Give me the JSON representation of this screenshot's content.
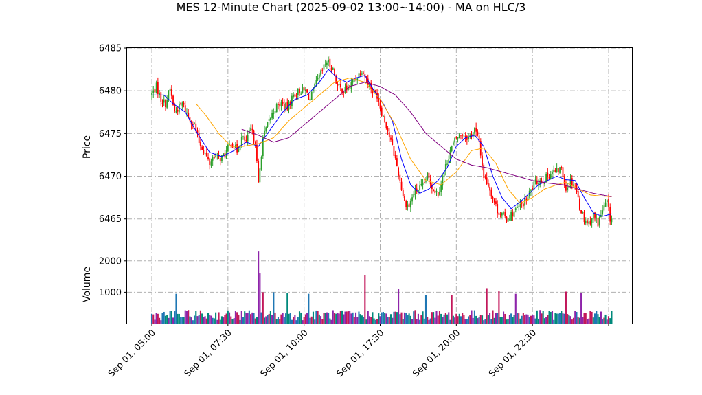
{
  "chart_data": {
    "type": "candlestick",
    "title": "MES 12-Minute Chart (2025-09-02 13:00~14:00) - MA on HLC/3",
    "price_panel": {
      "ylabel": "Price",
      "ylim": [
        6462.0,
        6485.0
      ],
      "yticks": [
        6465,
        6470,
        6475,
        6480,
        6485
      ],
      "ytick_labels": [
        "6465",
        "6470",
        "6475",
        "6480",
        "6485"
      ],
      "grid": true,
      "colors": {
        "up": "#2ca02c",
        "down": "#ff0000",
        "ma_fast": "#0000ff",
        "ma_mid": "#ffa500",
        "ma_slow": "#800080"
      },
      "close_series": [
        [
          0,
          6479.6
        ],
        [
          3,
          6480.5
        ],
        [
          6,
          6479.0
        ],
        [
          9,
          6478.5
        ],
        [
          12,
          6480.2
        ],
        [
          15,
          6477.5
        ],
        [
          20,
          6478.5
        ],
        [
          24,
          6477.0
        ],
        [
          28,
          6476.0
        ],
        [
          31,
          6474.0
        ],
        [
          34,
          6473.0
        ],
        [
          38,
          6471.5
        ],
        [
          41,
          6472.5
        ],
        [
          44,
          6472.0
        ],
        [
          48,
          6472.5
        ],
        [
          52,
          6474.0
        ],
        [
          56,
          6473.0
        ],
        [
          59,
          6474.5
        ],
        [
          62,
          6474.0
        ],
        [
          65,
          6475.5
        ],
        [
          68,
          6474.0
        ],
        [
          70,
          6469.0
        ],
        [
          73,
          6474.5
        ],
        [
          77,
          6476.5
        ],
        [
          81,
          6478.0
        ],
        [
          85,
          6478.5
        ],
        [
          89,
          6478.0
        ],
        [
          93,
          6479.5
        ],
        [
          97,
          6480.0
        ],
        [
          101,
          6480.0
        ],
        [
          104,
          6479.0
        ],
        [
          107,
          6480.5
        ],
        [
          111,
          6482.0
        ],
        [
          115,
          6483.5
        ],
        [
          119,
          6482.5
        ],
        [
          122,
          6480.5
        ],
        [
          126,
          6480.0
        ],
        [
          130,
          6480.5
        ],
        [
          134,
          6481.5
        ],
        [
          138,
          6482.5
        ],
        [
          142,
          6481.0
        ],
        [
          145,
          6480.0
        ],
        [
          148,
          6479.5
        ],
        [
          151,
          6477.5
        ],
        [
          154,
          6476.0
        ],
        [
          157,
          6474.0
        ],
        [
          160,
          6472.0
        ],
        [
          163,
          6469.5
        ],
        [
          166,
          6467.0
        ],
        [
          169,
          6466.5
        ],
        [
          172,
          6468.0
        ],
        [
          175,
          6468.5
        ],
        [
          178,
          6468.8
        ],
        [
          181,
          6470.0
        ],
        [
          185,
          6468.5
        ],
        [
          188,
          6468.0
        ],
        [
          192,
          6470.5
        ],
        [
          196,
          6473.0
        ],
        [
          200,
          6474.5
        ],
        [
          204,
          6475.0
        ],
        [
          208,
          6474.5
        ],
        [
          212,
          6475.5
        ],
        [
          215,
          6474.0
        ],
        [
          218,
          6470.0
        ],
        [
          221,
          6469.0
        ],
        [
          224,
          6467.5
        ],
        [
          227,
          6466.0
        ],
        [
          230,
          6465.5
        ],
        [
          233,
          6465.0
        ],
        [
          236,
          6465.5
        ],
        [
          239,
          6466.0
        ],
        [
          242,
          6466.5
        ],
        [
          245,
          6467.0
        ],
        [
          248,
          6468.0
        ],
        [
          251,
          6469.0
        ],
        [
          254,
          6469.5
        ],
        [
          257,
          6469.5
        ],
        [
          260,
          6470.0
        ],
        [
          263,
          6470.5
        ],
        [
          266,
          6470.5
        ],
        [
          269,
          6471.0
        ],
        [
          272,
          6468.5
        ],
        [
          275,
          6469.5
        ],
        [
          278,
          6469.0
        ],
        [
          281,
          6466.5
        ],
        [
          284,
          6465.0
        ],
        [
          287,
          6464.5
        ],
        [
          290,
          6465.5
        ],
        [
          293,
          6464.5
        ],
        [
          296,
          6466.0
        ],
        [
          299,
          6467.0
        ],
        [
          301,
          6465.0
        ]
      ],
      "ma_fast": [
        [
          0,
          6479.5
        ],
        [
          8,
          6479.5
        ],
        [
          14,
          6478.5
        ],
        [
          22,
          6477.5
        ],
        [
          30,
          6475.0
        ],
        [
          38,
          6472.8
        ],
        [
          46,
          6472.3
        ],
        [
          54,
          6473.0
        ],
        [
          62,
          6474.0
        ],
        [
          70,
          6473.5
        ],
        [
          78,
          6475.5
        ],
        [
          86,
          6477.5
        ],
        [
          94,
          6479.0
        ],
        [
          102,
          6479.5
        ],
        [
          110,
          6481.0
        ],
        [
          116,
          6482.5
        ],
        [
          122,
          6481.5
        ],
        [
          128,
          6481.0
        ],
        [
          134,
          6481.5
        ],
        [
          140,
          6481.8
        ],
        [
          146,
          6480.0
        ],
        [
          152,
          6478.5
        ],
        [
          158,
          6476.5
        ],
        [
          164,
          6472.0
        ],
        [
          170,
          6469.0
        ],
        [
          176,
          6468.0
        ],
        [
          182,
          6468.5
        ],
        [
          188,
          6469.5
        ],
        [
          194,
          6471.0
        ],
        [
          200,
          6473.5
        ],
        [
          206,
          6474.5
        ],
        [
          212,
          6474.8
        ],
        [
          218,
          6473.5
        ],
        [
          224,
          6470.0
        ],
        [
          230,
          6467.5
        ],
        [
          236,
          6466.2
        ],
        [
          242,
          6467.0
        ],
        [
          248,
          6468.0
        ],
        [
          254,
          6469.0
        ],
        [
          260,
          6469.5
        ],
        [
          266,
          6470.0
        ],
        [
          272,
          6469.6
        ],
        [
          278,
          6469.5
        ],
        [
          284,
          6467.5
        ],
        [
          290,
          6465.7
        ],
        [
          296,
          6465.3
        ],
        [
          302,
          6465.6
        ]
      ],
      "ma_mid": [
        [
          29,
          6478.5
        ],
        [
          36,
          6477.0
        ],
        [
          44,
          6475.0
        ],
        [
          52,
          6473.5
        ],
        [
          60,
          6473.5
        ],
        [
          70,
          6473.8
        ],
        [
          80,
          6474.5
        ],
        [
          90,
          6476.5
        ],
        [
          100,
          6478.0
        ],
        [
          110,
          6479.5
        ],
        [
          120,
          6481.0
        ],
        [
          130,
          6481.5
        ],
        [
          140,
          6481.0
        ],
        [
          150,
          6479.0
        ],
        [
          160,
          6476.0
        ],
        [
          170,
          6472.0
        ],
        [
          180,
          6469.5
        ],
        [
          190,
          6469.0
        ],
        [
          200,
          6470.5
        ],
        [
          210,
          6473.0
        ],
        [
          218,
          6473.3
        ],
        [
          226,
          6471.5
        ],
        [
          234,
          6468.5
        ],
        [
          242,
          6466.8
        ],
        [
          250,
          6467.5
        ],
        [
          258,
          6468.5
        ],
        [
          266,
          6469.0
        ],
        [
          272,
          6469.3
        ],
        [
          280,
          6468.5
        ],
        [
          288,
          6467.8
        ],
        [
          294,
          6467.7
        ],
        [
          302,
          6467.6
        ]
      ],
      "ma_slow": [
        [
          59,
          6475.5
        ],
        [
          70,
          6474.8
        ],
        [
          80,
          6474.0
        ],
        [
          90,
          6474.5
        ],
        [
          100,
          6476.0
        ],
        [
          110,
          6477.5
        ],
        [
          120,
          6479.0
        ],
        [
          130,
          6480.5
        ],
        [
          140,
          6481.0
        ],
        [
          150,
          6480.5
        ],
        [
          160,
          6479.5
        ],
        [
          170,
          6477.5
        ],
        [
          180,
          6475.0
        ],
        [
          190,
          6473.5
        ],
        [
          200,
          6472.0
        ],
        [
          210,
          6471.3
        ],
        [
          220,
          6471.0
        ],
        [
          230,
          6470.5
        ],
        [
          240,
          6470.0
        ],
        [
          250,
          6469.5
        ],
        [
          260,
          6469.2
        ],
        [
          270,
          6469.0
        ],
        [
          280,
          6468.5
        ],
        [
          290,
          6468.0
        ],
        [
          302,
          6467.6
        ]
      ]
    },
    "volume_panel": {
      "ylabel": "Volume",
      "ylim": [
        0,
        2500
      ],
      "yticks": [
        1000,
        2000
      ],
      "ytick_labels": [
        "1000",
        "2000"
      ],
      "grid": true,
      "spikes": [
        [
          16,
          950
        ],
        [
          70,
          2300
        ],
        [
          71,
          1600
        ],
        [
          73,
          1000
        ],
        [
          80,
          1000
        ],
        [
          89,
          980
        ],
        [
          103,
          950
        ],
        [
          140,
          1550
        ],
        [
          162,
          1100
        ],
        [
          180,
          900
        ],
        [
          197,
          920
        ],
        [
          220,
          1130
        ],
        [
          228,
          1050
        ],
        [
          239,
          950
        ],
        [
          272,
          1020
        ],
        [
          282,
          980
        ]
      ],
      "base_level": 300
    },
    "x_axis": {
      "n_bars": 303,
      "tick_positions": [
        0,
        50,
        100,
        150,
        200,
        250,
        300
      ],
      "tick_labels": [
        "Sep 01, 05:00",
        "Sep 01, 07:30",
        "Sep 01, 10:00",
        "Sep 01, 17:30",
        "Sep 01, 20:00",
        "Sep 01, 22:30",
        ""
      ]
    }
  }
}
